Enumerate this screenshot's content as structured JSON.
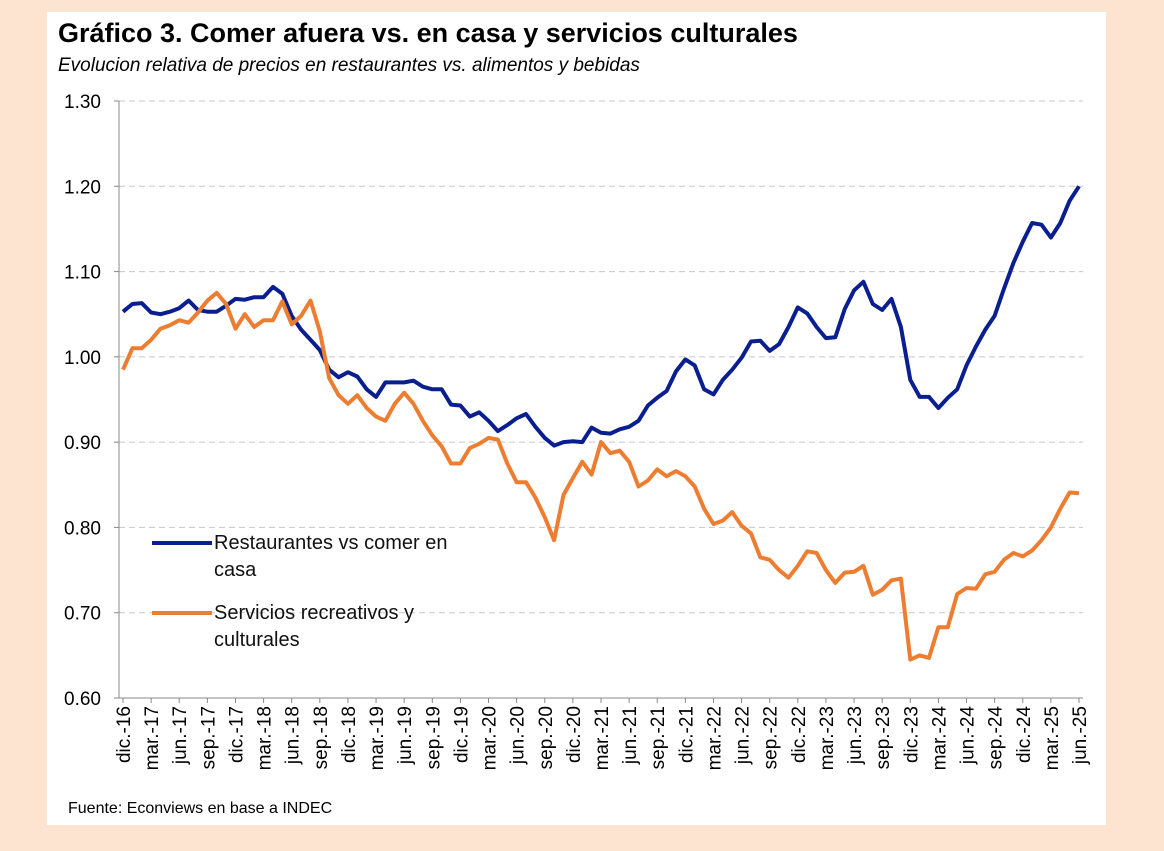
{
  "chart_data": {
    "type": "line",
    "title": "Gráfico 3. Comer afuera vs. en casa y servicios culturales",
    "subtitle": "Evolucion relativa de precios en restaurantes vs. alimentos y bebidas",
    "source": "Fuente: Econviews en base a INDEC",
    "categories": [
      "dic.-16",
      null,
      null,
      "mar.-17",
      null,
      null,
      "jun.-17",
      null,
      null,
      "sep.-17",
      null,
      null,
      "dic.-17",
      null,
      null,
      "mar.-18",
      null,
      null,
      "jun.-18",
      null,
      null,
      "sep.-18",
      null,
      null,
      "dic.-18",
      null,
      null,
      "mar.-19",
      null,
      null,
      "jun.-19",
      null,
      null,
      "sep.-19",
      null,
      null,
      "dic.-19",
      null,
      null,
      "mar.-20",
      null,
      null,
      "jun.-20",
      null,
      null,
      "sep.-20",
      null,
      null,
      "dic.-20",
      null,
      null,
      "mar.-21",
      null,
      null,
      "jun.-21",
      null,
      null,
      "sep.-21",
      null,
      null,
      "dic.-21",
      null,
      null,
      "mar.-22",
      null,
      null,
      "jun.-22",
      null,
      null,
      "sep.-22",
      null,
      null,
      "dic.-22",
      null,
      null,
      "mar.-23",
      null,
      null,
      "jun.-23",
      null,
      null,
      "sep.-23",
      null,
      null,
      "dic.-23",
      null,
      null,
      "mar.-24",
      null,
      null,
      "jun.-24",
      null,
      null,
      "sep.-24",
      null,
      null,
      "dic.-24",
      null,
      null,
      "mar.-25",
      null,
      null,
      "jun.-25"
    ],
    "series": [
      {
        "name": "Restaurantes vs comer en casa",
        "color": "#0a1f8f",
        "values": [
          1.053,
          1.062,
          1.063,
          1.052,
          1.05,
          1.053,
          1.057,
          1.066,
          1.055,
          1.053,
          1.053,
          1.06,
          1.068,
          1.067,
          1.07,
          1.07,
          1.082,
          1.074,
          1.048,
          1.032,
          1.02,
          1.008,
          0.985,
          0.976,
          0.982,
          0.977,
          0.962,
          0.953,
          0.97,
          0.97,
          0.97,
          0.972,
          0.965,
          0.962,
          0.962,
          0.944,
          0.943,
          0.93,
          0.935,
          0.925,
          0.913,
          0.92,
          0.928,
          0.933,
          0.918,
          0.905,
          0.896,
          0.9,
          0.901,
          0.9,
          0.917,
          0.911,
          0.91,
          0.915,
          0.918,
          0.925,
          0.943,
          0.952,
          0.96,
          0.983,
          0.997,
          0.99,
          0.962,
          0.956,
          0.973,
          0.985,
          0.999,
          1.018,
          1.019,
          1.007,
          1.015,
          1.035,
          1.058,
          1.051,
          1.035,
          1.022,
          1.023,
          1.056,
          1.078,
          1.088,
          1.062,
          1.055,
          1.068,
          1.035,
          0.973,
          0.953,
          0.953,
          0.94,
          0.952,
          0.962,
          0.99,
          1.012,
          1.032,
          1.048,
          1.08,
          1.11,
          1.135,
          1.157,
          1.155,
          1.14,
          1.157,
          1.183,
          1.2
        ]
      },
      {
        "name": "Servicios recreativos y culturales",
        "color": "#ed7d31",
        "values": [
          0.985,
          1.01,
          1.01,
          1.02,
          1.033,
          1.037,
          1.043,
          1.04,
          1.052,
          1.066,
          1.075,
          1.062,
          1.033,
          1.05,
          1.035,
          1.043,
          1.043,
          1.065,
          1.038,
          1.048,
          1.066,
          1.03,
          0.975,
          0.955,
          0.945,
          0.955,
          0.94,
          0.93,
          0.925,
          0.945,
          0.958,
          0.945,
          0.925,
          0.908,
          0.895,
          0.875,
          0.875,
          0.893,
          0.898,
          0.905,
          0.903,
          0.875,
          0.853,
          0.853,
          0.835,
          0.812,
          0.785,
          0.838,
          0.858,
          0.877,
          0.862,
          0.9,
          0.887,
          0.89,
          0.877,
          0.848,
          0.855,
          0.868,
          0.86,
          0.866,
          0.86,
          0.848,
          0.822,
          0.804,
          0.808,
          0.818,
          0.802,
          0.793,
          0.765,
          0.762,
          0.75,
          0.741,
          0.755,
          0.772,
          0.77,
          0.75,
          0.735,
          0.747,
          0.748,
          0.755,
          0.721,
          0.727,
          0.738,
          0.74,
          0.645,
          0.65,
          0.647,
          0.683,
          0.683,
          0.722,
          0.729,
          0.728,
          0.745,
          0.748,
          0.762,
          0.77,
          0.766,
          0.773,
          0.785,
          0.8,
          0.822,
          0.841,
          0.84
        ]
      }
    ],
    "ylim": [
      0.6,
      1.3
    ],
    "yticks": [
      {
        "value": 0.6,
        "label": "0.60"
      },
      {
        "value": 0.7,
        "label": "0.70"
      },
      {
        "value": 0.8,
        "label": "0.80"
      },
      {
        "value": 0.9,
        "label": "0.90"
      },
      {
        "value": 1.0,
        "label": "1.00"
      },
      {
        "value": 1.1,
        "label": "1.10"
      },
      {
        "value": 1.2,
        "label": "1.20"
      },
      {
        "value": 1.3,
        "label": "1.30"
      }
    ],
    "grid": true,
    "legend": "lower-left"
  }
}
